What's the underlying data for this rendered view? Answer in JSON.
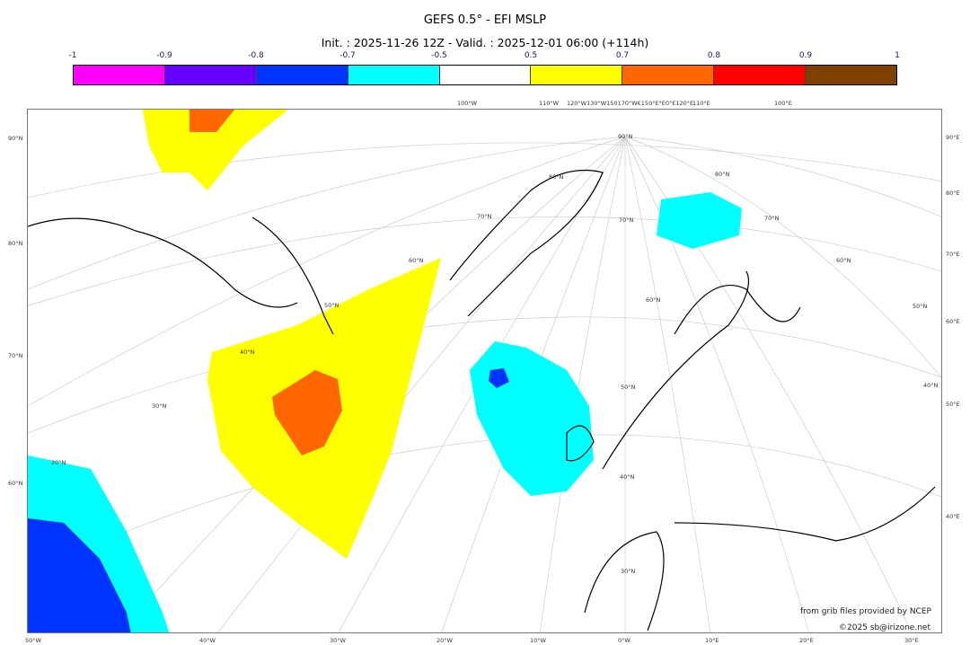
{
  "header": {
    "title": "GEFS 0.5° - EFI MSLP",
    "subtitle": "Init. : 2025-11-26 12Z - Valid. : 2025-12-01 06:00 (+114h)"
  },
  "colorbar": {
    "ticks": [
      "-1",
      "-0.9",
      "-0.8",
      "-0.7",
      "-0.5",
      "0.5",
      "0.7",
      "0.8",
      "0.9",
      "1"
    ],
    "colors": [
      "#ff00ff",
      "#6600ff",
      "#0033ff",
      "#00ffff",
      "#ffffff",
      "#ffff00",
      "#ff6600",
      "#ff0000",
      "#804000"
    ]
  },
  "map": {
    "left_labels": [
      "90°N",
      "80°N",
      "70°N",
      "60°N"
    ],
    "right_labels": [
      "90°E",
      "80°E",
      "70°E",
      "60°E",
      "50°E",
      "40°E"
    ],
    "bottom_labels": [
      "50°W",
      "40°W",
      "30°W",
      "20°W",
      "10°W",
      "0°W",
      "10°E",
      "20°E",
      "30°E"
    ],
    "top_labels": [
      "100°W",
      "110°W",
      "120°W130°W150170°W€150°E°E0°E120°E",
      "110°E",
      "100°E"
    ],
    "inner_labels": [
      "90°N",
      "80°N",
      "70°N",
      "60°N",
      "50°N",
      "40°N",
      "30°N",
      "20°N",
      "80°N",
      "70°N",
      "60°N",
      "50°N",
      "40°N",
      "70°N",
      "60°N",
      "50°N"
    ]
  },
  "credits": {
    "line1": "from grib files provided by NCEP",
    "line2": "©2025 sb@irizone.net"
  }
}
